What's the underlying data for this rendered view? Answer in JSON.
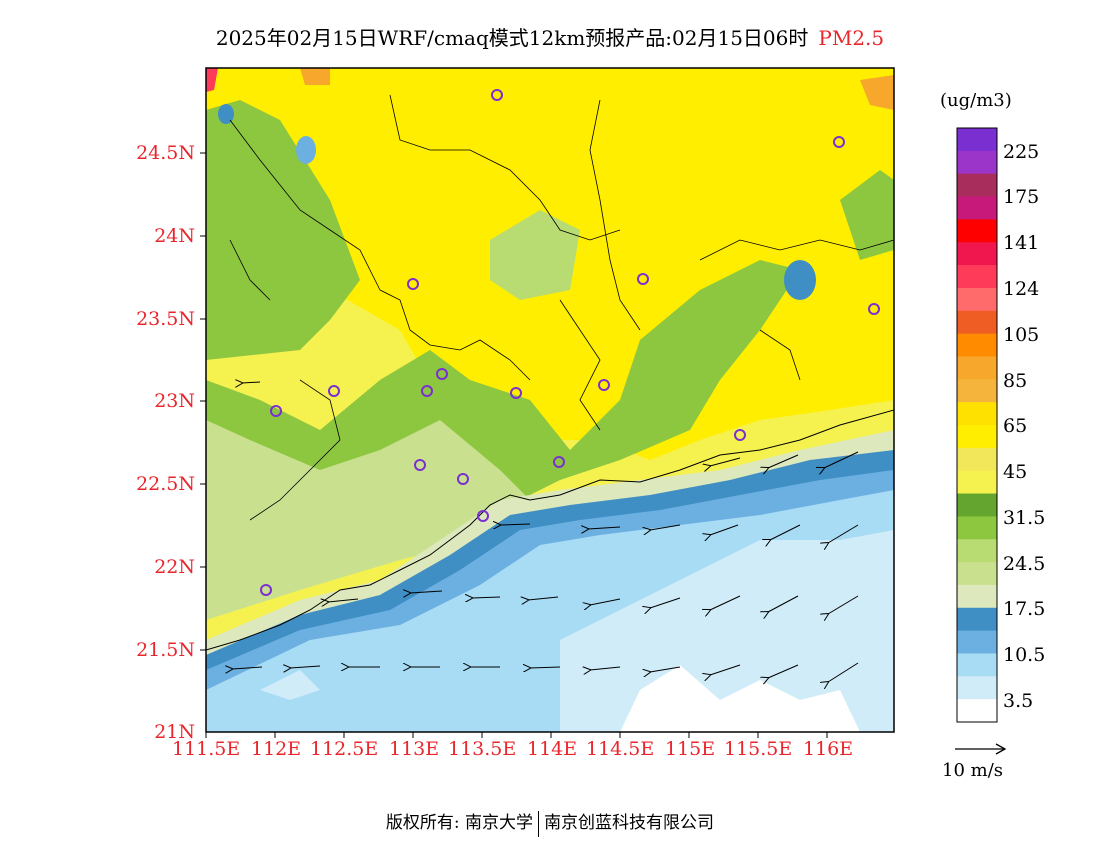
{
  "title": {
    "text": "2025年02月15日WRF/cmaq模式12km预报产品:02月15日06时",
    "variable": "PM2.5"
  },
  "map": {
    "lat_labels": [
      "24.5N",
      "24N",
      "23.5N",
      "23N",
      "22.5N",
      "22N",
      "21.5N",
      "21N"
    ],
    "lon_labels": [
      "111.5E",
      "112E",
      "112.5E",
      "113E",
      "113.5E",
      "114E",
      "114.5E",
      "115E",
      "115.5E",
      "116E"
    ]
  },
  "colorbar": {
    "unit": "(ug/m3)",
    "levels": [
      "225",
      "175",
      "141",
      "124",
      "105",
      "85",
      "65",
      "45",
      "31.5",
      "24.5",
      "17.5",
      "10.5",
      "3.5"
    ],
    "colors": [
      "#7a2fd1",
      "#9b35c9",
      "#a82d5c",
      "#c7197a",
      "#ff0000",
      "#f0174e",
      "#ff3b5a",
      "#ff6b6b",
      "#f05d24",
      "#ff8c00",
      "#f7a72b",
      "#f5b43c",
      "#ffe100",
      "#ffee00",
      "#f2e65a",
      "#f5f250",
      "#63a52f",
      "#8dc63f",
      "#b8db72",
      "#c9e08f",
      "#dde8bd",
      "#3f8ec4",
      "#6bb0e0",
      "#a8dcf5",
      "#d0ecf8",
      "#ffffff"
    ]
  },
  "wind_reference": {
    "label": "10 m/s"
  },
  "footer": {
    "left": "版权所有: 南京大学",
    "right": "南京创蓝科技有限公司"
  }
}
